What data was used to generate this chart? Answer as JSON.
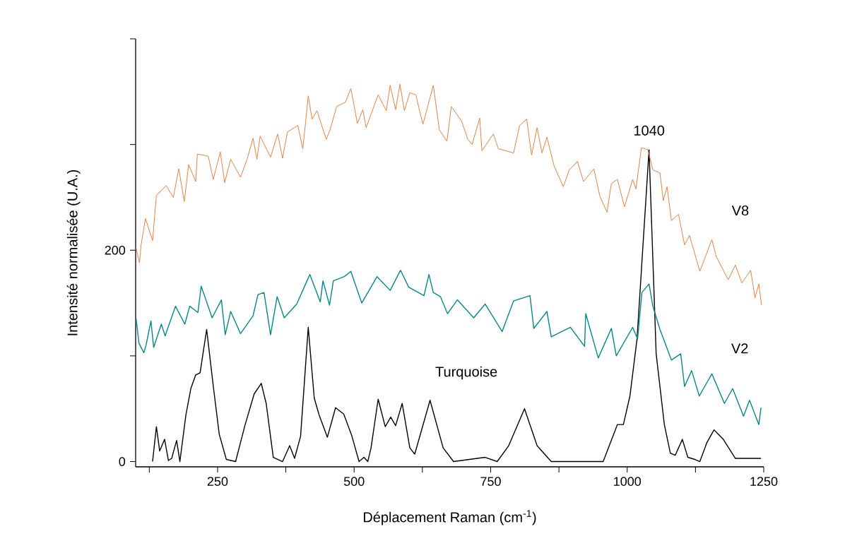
{
  "chart_data": {
    "type": "line",
    "xlabel": "Déplacement Raman (cm$^{-1}$)",
    "ylabel": "Intensité normalisée (U.A.)",
    "xlim": [
      100,
      1250
    ],
    "ylim": [
      -5,
      400
    ],
    "xticks": [
      {
        "value": 125,
        "label": null
      },
      250,
      {
        "value": 375,
        "label": null
      },
      500,
      {
        "value": 625,
        "label": null
      },
      750,
      {
        "value": 875,
        "label": null
      },
      1000,
      {
        "value": 1125,
        "label": null
      },
      1250
    ],
    "yticks": [
      0,
      {
        "value": 100,
        "label": null
      },
      200,
      {
        "value": 300,
        "label": null
      },
      {
        "value": 400,
        "label": null
      }
    ],
    "annotations": [
      {
        "text": "1040",
        "x": 1040,
        "y": 295
      }
    ],
    "series": [
      {
        "name": "Turquoise",
        "color": "#000000",
        "x": [
          131,
          138,
          144,
          153,
          160,
          166,
          175,
          181,
          192,
          201,
          210,
          218,
          230,
          242,
          253,
          266,
          283,
          300,
          317,
          330,
          339,
          352,
          369,
          382,
          391,
          402,
          416,
          427,
          436,
          451,
          466,
          481,
          496,
          509,
          518,
          525,
          531,
          544,
          557,
          567,
          576,
          588,
          602,
          611,
          639,
          663,
          682,
          740,
          762,
          783,
          812,
          835,
          861,
          956,
          982,
          993,
          1005,
          1018,
          1040,
          1053,
          1068,
          1079,
          1088,
          1101,
          1111,
          1124,
          1133,
          1146,
          1159,
          1176,
          1198,
          1245
        ],
        "values": [
          0,
          33,
          10,
          21,
          1,
          3,
          20,
          0,
          44,
          69,
          82,
          84,
          125,
          72,
          26,
          2,
          0,
          34,
          64,
          74,
          55,
          4,
          0,
          15,
          3,
          24,
          127,
          60,
          44,
          23,
          51,
          45,
          24,
          0,
          4,
          0,
          13,
          59,
          33,
          42,
          34,
          55,
          13,
          7,
          58,
          13,
          0,
          4,
          0,
          15,
          50,
          15,
          0,
          0,
          35,
          35,
          62,
          116,
          295,
          102,
          35,
          8,
          6,
          21,
          4,
          2,
          0,
          18,
          30,
          21,
          3,
          3
        ]
      },
      {
        "name": "V8",
        "color": "#f0803c",
        "x": [
          101,
          107,
          110,
          118,
          131,
          138,
          156,
          169,
          179,
          189,
          197,
          210,
          213,
          233,
          242,
          255,
          263,
          274,
          292,
          304,
          315,
          322,
          328,
          347,
          360,
          369,
          378,
          397,
          406,
          412,
          416,
          423,
          432,
          449,
          456,
          468,
          484,
          494,
          506,
          516,
          522,
          544,
          559,
          566,
          576,
          584,
          592,
          602,
          613,
          626,
          645,
          656,
          670,
          678,
          697,
          708,
          716,
          730,
          734,
          755,
          764,
          792,
          803,
          816,
          825,
          835,
          844,
          853,
          866,
          883,
          894,
          909,
          920,
          939,
          950,
          963,
          971,
          982,
          995,
          1010,
          1016,
          1026,
          1038,
          1047,
          1060,
          1066,
          1073,
          1081,
          1094,
          1105,
          1114,
          1133,
          1155,
          1163,
          1185,
          1198,
          1210,
          1226,
          1234,
          1241,
          1246
        ],
        "values": [
          202,
          188,
          205,
          230,
          209,
          252,
          261,
          250,
          277,
          246,
          281,
          265,
          291,
          289,
          267,
          293,
          264,
          286,
          269,
          286,
          306,
          286,
          308,
          288,
          310,
          287,
          312,
          318,
          296,
          325,
          346,
          324,
          332,
          305,
          314,
          336,
          340,
          353,
          320,
          333,
          316,
          347,
          332,
          356,
          333,
          357,
          332,
          349,
          347,
          319,
          356,
          314,
          303,
          336,
          322,
          305,
          300,
          325,
          294,
          310,
          296,
          292,
          318,
          324,
          290,
          316,
          292,
          307,
          280,
          260,
          276,
          284,
          265,
          277,
          251,
          236,
          263,
          267,
          241,
          267,
          258,
          297,
          295,
          276,
          273,
          247,
          260,
          228,
          234,
          205,
          214,
          180,
          210,
          194,
          172,
          186,
          169,
          181,
          155,
          168,
          148
        ]
      },
      {
        "name": "V2",
        "color": "#008b8b",
        "x": [
          101,
          106,
          115,
          119,
          128,
          133,
          147,
          154,
          173,
          190,
          199,
          214,
          220,
          240,
          257,
          264,
          274,
          292,
          315,
          324,
          335,
          347,
          359,
          372,
          395,
          412,
          419,
          438,
          443,
          455,
          462,
          482,
          494,
          514,
          542,
          566,
          585,
          600,
          628,
          637,
          645,
          658,
          671,
          689,
          719,
          740,
          771,
          792,
          822,
          829,
          853,
          861,
          896,
          922,
          924,
          947,
          971,
          980,
          1010,
          1019,
          1027,
          1040,
          1047,
          1060,
          1081,
          1098,
          1105,
          1118,
          1132,
          1155,
          1178,
          1193,
          1213,
          1224,
          1241,
          1245
        ],
        "values": [
          135,
          112,
          103,
          110,
          133,
          108,
          130,
          119,
          147,
          130,
          147,
          141,
          166,
          136,
          153,
          120,
          142,
          121,
          138,
          158,
          160,
          120,
          156,
          136,
          149,
          169,
          177,
          151,
          171,
          148,
          171,
          175,
          180,
          150,
          175,
          162,
          181,
          165,
          157,
          177,
          160,
          156,
          140,
          153,
          136,
          149,
          123,
          152,
          157,
          126,
          142,
          118,
          127,
          109,
          140,
          98,
          126,
          100,
          127,
          116,
          160,
          168,
          147,
          125,
          96,
          102,
          71,
          86,
          62,
          83,
          55,
          69,
          43,
          58,
          35,
          51
        ]
      }
    ]
  }
}
